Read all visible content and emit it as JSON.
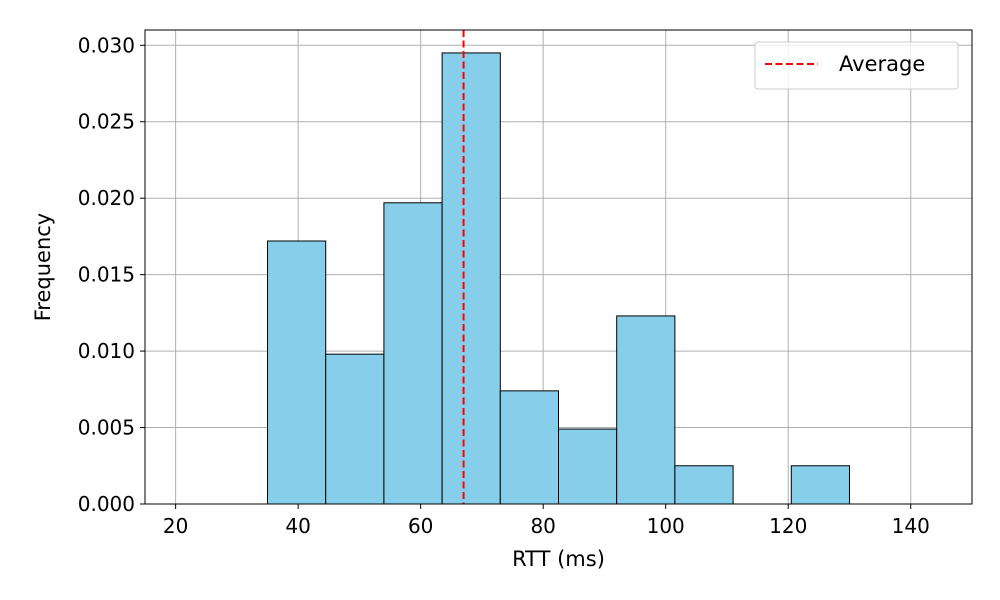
{
  "chart_data": {
    "type": "histogram",
    "title": "",
    "xlabel": "RTT (ms)",
    "ylabel": "Frequency",
    "xlim": [
      15,
      150
    ],
    "ylim": [
      0,
      0.031
    ],
    "x_ticks": [
      20,
      40,
      60,
      80,
      100,
      120,
      140
    ],
    "x_tick_labels": [
      "20",
      "40",
      "60",
      "80",
      "100",
      "120",
      "140"
    ],
    "y_ticks": [
      0.0,
      0.005,
      0.01,
      0.015,
      0.02,
      0.025,
      0.03
    ],
    "y_tick_labels": [
      "0.000",
      "0.005",
      "0.010",
      "0.015",
      "0.020",
      "0.025",
      "0.030"
    ],
    "grid": true,
    "bins": [
      {
        "x0": 35.0,
        "x1": 44.5,
        "value": 0.0172
      },
      {
        "x0": 44.5,
        "x1": 54.0,
        "value": 0.0098
      },
      {
        "x0": 54.0,
        "x1": 63.5,
        "value": 0.0197
      },
      {
        "x0": 63.5,
        "x1": 73.0,
        "value": 0.0295
      },
      {
        "x0": 73.0,
        "x1": 82.5,
        "value": 0.0074
      },
      {
        "x0": 82.5,
        "x1": 92.0,
        "value": 0.0049
      },
      {
        "x0": 92.0,
        "x1": 101.5,
        "value": 0.0123
      },
      {
        "x0": 101.5,
        "x1": 111.0,
        "value": 0.0025
      },
      {
        "x0": 111.0,
        "x1": 120.5,
        "value": 0.0
      },
      {
        "x0": 120.5,
        "x1": 130.0,
        "value": 0.0025
      }
    ],
    "bar_color": "#87ceeb",
    "bar_edge_color": "#000000",
    "average_line": {
      "x": 67.0,
      "label": "Average",
      "color": "#ff0000",
      "style": "dashed"
    },
    "legend": {
      "entries": [
        "Average"
      ],
      "placement": "top-right"
    }
  }
}
